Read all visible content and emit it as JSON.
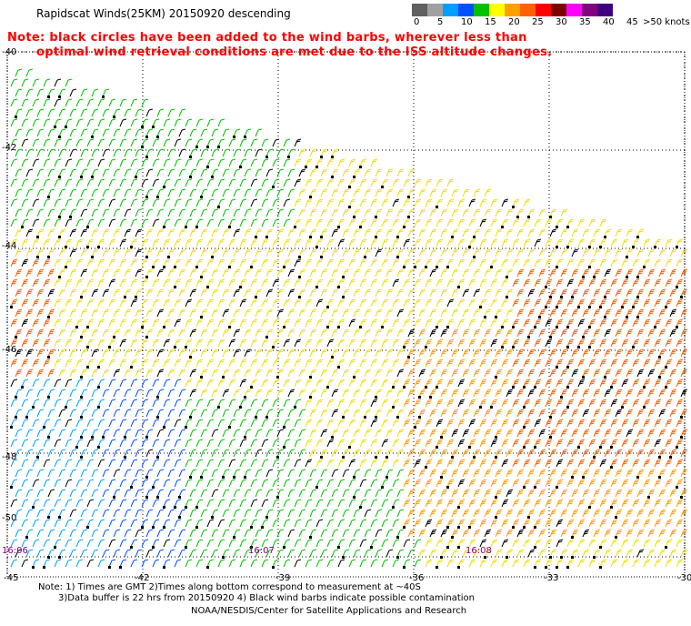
{
  "title": "Rapidscat Winds(25KM) 20150920 descending",
  "note": {
    "line1": "Note: black circles have been added to the wind barbs, wherever less than",
    "line2": "optimal wind retrieval conditions are met due to the ISS altitude changes."
  },
  "legend": {
    "unit_label": ">50 knots",
    "labels": [
      "0",
      "5",
      "10",
      "15",
      "20",
      "25",
      "30",
      "35",
      "40",
      "45"
    ],
    "colors": [
      "#606060",
      "#a0a0a0",
      "#00a0ff",
      "#0050ff",
      "#00c000",
      "#ffff00",
      "#ffa000",
      "#ff6000",
      "#ff0000",
      "#800000",
      "#ff00ff",
      "#800080",
      "#400080"
    ]
  },
  "map": {
    "lat_labels": [
      "-40",
      "-42",
      "-44",
      "-46",
      "-48",
      "-50"
    ],
    "lon_labels": [
      "-45",
      "-42",
      "-39",
      "-36",
      "-33",
      "-30"
    ],
    "time_labels": [
      "16:06",
      "16:07",
      "16:08"
    ]
  },
  "footer": {
    "line1": "Note: 1) Times are GMT 2)Times along bottom correspond to measurement at ~40S",
    "line2": "3)Data buffer is 22 hrs from 20150920 4) Black wind barbs indicate possible contamination",
    "line3": "NOAA/NESDIS/Center for Satellite Applications and Research"
  }
}
